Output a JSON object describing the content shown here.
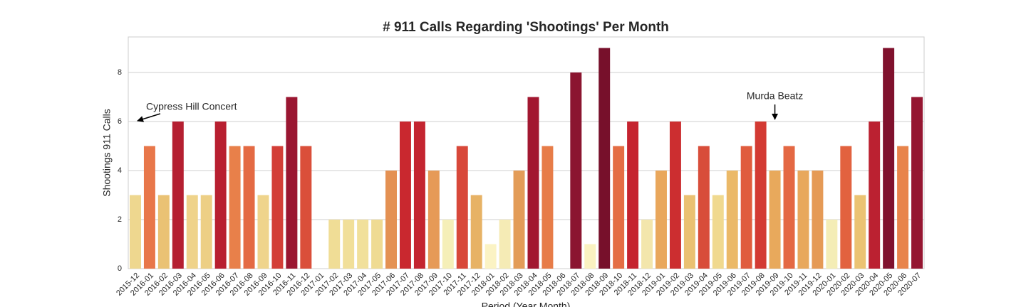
{
  "chart_data": {
    "type": "bar",
    "title": "# 911 Calls Regarding 'Shootings' Per Month",
    "x_label": "Period (Year Month)",
    "y_label": "Shootings 911 Calls",
    "categories": [
      "2015-12",
      "2016-01",
      "2016-02",
      "2016-03",
      "2016-04",
      "2016-05",
      "2016-06",
      "2016-07",
      "2016-08",
      "2016-09",
      "2016-10",
      "2016-11",
      "2016-12",
      "2017-01",
      "2017-02",
      "2017-03",
      "2017-04",
      "2017-05",
      "2017-06",
      "2017-07",
      "2017-08",
      "2017-09",
      "2017-10",
      "2017-11",
      "2017-12",
      "2018-01",
      "2018-02",
      "2018-03",
      "2018-04",
      "2018-05",
      "2018-06",
      "2018-07",
      "2018-08",
      "2018-09",
      "2018-10",
      "2018-11",
      "2018-12",
      "2019-01",
      "2019-02",
      "2019-03",
      "2019-04",
      "2019-05",
      "2019-06",
      "2019-07",
      "2019-08",
      "2019-09",
      "2019-10",
      "2019-11",
      "2019-12",
      "2020-01",
      "2020-02",
      "2020-03",
      "2020-04",
      "2020-05",
      "2020-06",
      "2020-07"
    ],
    "values": [
      3,
      5,
      3,
      6,
      3,
      3,
      6,
      5,
      5,
      3,
      5,
      7,
      5,
      0,
      2,
      2,
      2,
      2,
      4,
      6,
      6,
      4,
      2,
      5,
      3,
      1,
      2,
      4,
      7,
      5,
      0,
      8,
      1,
      9,
      5,
      6,
      2,
      4,
      6,
      3,
      5,
      3,
      4,
      5,
      6,
      4,
      5,
      4,
      4,
      2,
      5,
      3,
      6,
      9,
      5,
      7
    ],
    "colors": [
      "#eed78f",
      "#e8774a",
      "#eac274",
      "#b51f31",
      "#efd38a",
      "#edcf85",
      "#b81f30",
      "#e8804a",
      "#e46a43",
      "#efd48c",
      "#d33e37",
      "#9a1631",
      "#da4f3a",
      "#f0dd96",
      "#f0dd96",
      "#f1df99",
      "#f1e09b",
      "#efdb93",
      "#e49153",
      "#c9282f",
      "#c42530",
      "#e69a57",
      "#f5efb8",
      "#d8483a",
      "#e7b265",
      "#fbf3c4",
      "#f5ebb5",
      "#e39c58",
      "#a21730",
      "#e77c48",
      "#f5efb8",
      "#8b1530",
      "#faf2c1",
      "#77102b",
      "#e46d44",
      "#c5232f",
      "#f3e6ac",
      "#e9a75c",
      "#cc2e30",
      "#eac172",
      "#d84d3a",
      "#f0d98f",
      "#ebb968",
      "#e05c3e",
      "#d33a33",
      "#e8a95c",
      "#e46843",
      "#e8a85c",
      "#e59a56",
      "#f4edb6",
      "#e2623f",
      "#ebc373",
      "#bb2131",
      "#80112d",
      "#e8844b",
      "#951631"
    ],
    "ylim": [
      0,
      9.45
    ],
    "yticks": [
      0,
      2,
      4,
      6,
      8
    ],
    "grid": true,
    "annotations": [
      {
        "text": "Cypress Hill Concert",
        "x": "2015-12",
        "y": 6
      },
      {
        "text": "Murda Beatz",
        "x": "2019-09",
        "y": 6
      }
    ]
  }
}
